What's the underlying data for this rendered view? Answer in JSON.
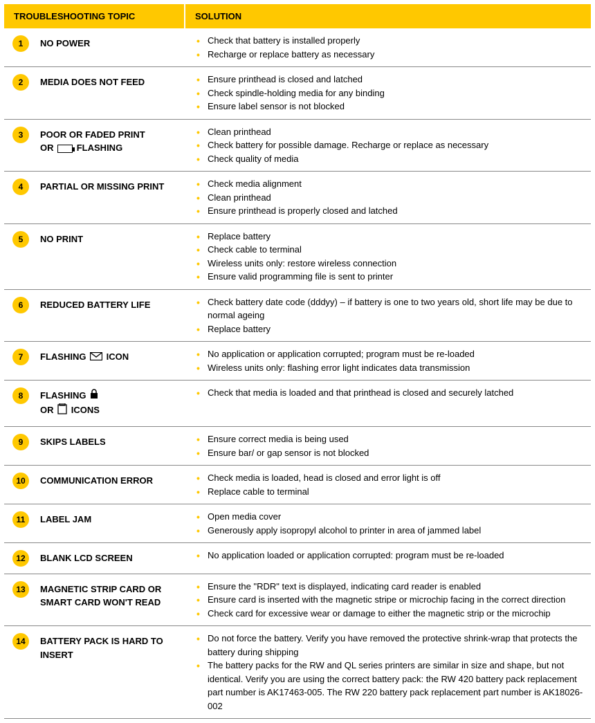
{
  "colors": {
    "header_bg": "#ffc800",
    "circle_bg": "#ffc800",
    "bullet_color": "#ffc800",
    "divider_color": "#888888",
    "text_color": "#000000"
  },
  "header": {
    "topic": "TROUBLESHOOTING TOPIC",
    "solution": "SOLUTION"
  },
  "rows": [
    {
      "num": "1",
      "topic_plain": "NO POWER",
      "solutions": [
        "Check that battery is installed properly",
        "Recharge or replace battery as necessary"
      ]
    },
    {
      "num": "2",
      "topic_plain": "MEDIA DOES NOT FEED",
      "solutions": [
        "Ensure printhead is closed and latched",
        "Check spindle-holding media for any binding",
        "Ensure label sensor is not blocked"
      ]
    },
    {
      "num": "3",
      "topic_pre": "POOR OR FADED PRINT OR ",
      "topic_icon": "battery",
      "topic_post": " FLASHING",
      "solutions": [
        "Clean printhead",
        "Check battery for possible damage. Recharge or replace as necessary",
        "Check quality of media"
      ]
    },
    {
      "num": "4",
      "topic_plain": "PARTIAL OR MISSING PRINT",
      "solutions": [
        "Check media alignment",
        "Clean printhead",
        "Ensure printhead is properly closed and latched"
      ]
    },
    {
      "num": "5",
      "topic_plain": "NO PRINT",
      "solutions": [
        "Replace battery",
        "Check cable to terminal",
        "Wireless units only: restore wireless connection",
        "Ensure valid programming file is sent to printer"
      ]
    },
    {
      "num": "6",
      "topic_plain": "REDUCED BATTERY LIFE",
      "solutions": [
        "Check battery date code (dddyy) – if battery is one to two years old, short life may be due to normal ageing",
        "Replace battery"
      ]
    },
    {
      "num": "7",
      "topic_pre": "FLASHING ",
      "topic_icon": "envelope",
      "topic_post": " ICON",
      "solutions": [
        "No application or application corrupted; program must be re-loaded",
        "Wireless units only: flashing error light indicates data transmission"
      ]
    },
    {
      "num": "8",
      "topic_pre": "FLASHING ",
      "topic_icon": "lock",
      "topic_mid": " OR ",
      "topic_icon2": "media",
      "topic_post": " ICONS",
      "solutions": [
        "Check that media is loaded and that printhead is closed and securely latched"
      ]
    },
    {
      "num": "9",
      "topic_plain": "SKIPS LABELS",
      "solutions": [
        "Ensure correct media is being used",
        "Ensure bar/ or gap sensor is not blocked"
      ]
    },
    {
      "num": "10",
      "topic_plain": "COMMUNICATION ERROR",
      "solutions": [
        "Check media is loaded, head is closed and error light is off",
        "Replace cable to terminal"
      ]
    },
    {
      "num": "11",
      "topic_plain": "LABEL JAM",
      "solutions": [
        "Open media cover",
        "Generously apply isopropyl alcohol to printer in area of jammed label"
      ]
    },
    {
      "num": "12",
      "topic_plain": "BLANK LCD SCREEN",
      "solutions": [
        "No application loaded or application corrupted: program must be re-loaded"
      ]
    },
    {
      "num": "13",
      "topic_plain": "MAGNETIC STRIP CARD OR SMART CARD WON'T READ",
      "solutions": [
        "Ensure the \"RDR\" text is displayed, indicating card reader is enabled",
        "Ensure card is inserted with the magnetic stripe or microchip facing in the correct direction",
        "Check card for excessive wear or damage to either the magnetic strip or the microchip"
      ]
    },
    {
      "num": "14",
      "topic_plain": "BATTERY PACK IS HARD TO INSERT",
      "solutions": [
        "Do not force the battery. Verify you have removed the protective shrink-wrap that protects the battery during shipping",
        "The battery packs for the RW and QL series printers are similar in size and shape, but not identical. Verify you are using the correct battery pack: the RW 420 battery pack replacement part number is AK17463-005. The RW 220 battery pack replacement part number is AK18026-002"
      ]
    }
  ]
}
